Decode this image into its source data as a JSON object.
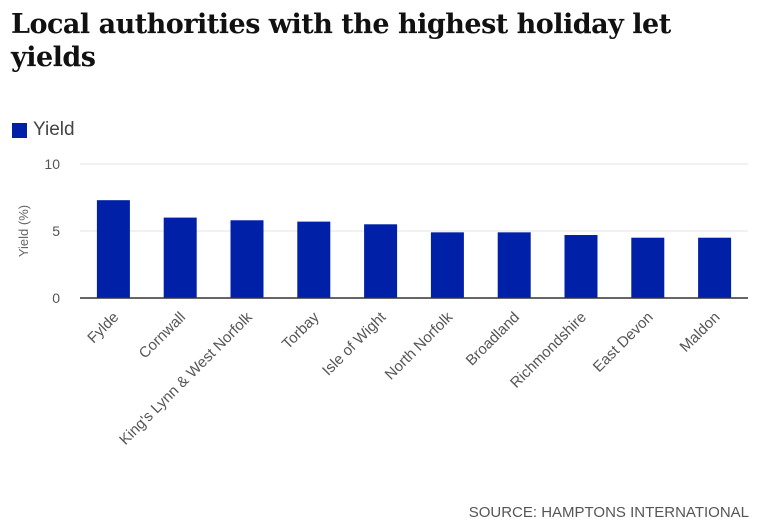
{
  "title": "Local authorities with the highest holiday let yields",
  "source": "SOURCE: HAMPTONS INTERNATIONAL",
  "chart_data": {
    "type": "bar",
    "title": "Local authorities with the highest holiday let yields",
    "categories": [
      "Fylde",
      "Cornwall",
      "King's Lynn & West Norfolk",
      "Torbay",
      "Isle of Wight",
      "North Norfolk",
      "Broadland",
      "Richmondshire",
      "East Devon",
      "Maldon"
    ],
    "series": [
      {
        "name": "Yield",
        "color": "#0020a8",
        "values": [
          7.3,
          6.0,
          5.8,
          5.7,
          5.5,
          4.9,
          4.9,
          4.7,
          4.5,
          4.5
        ]
      }
    ],
    "xlabel": "",
    "ylabel": "Yield (%)",
    "ylim": [
      0,
      10
    ],
    "yticks": [
      0,
      5,
      10
    ],
    "grid": true,
    "legend": "top-left"
  }
}
